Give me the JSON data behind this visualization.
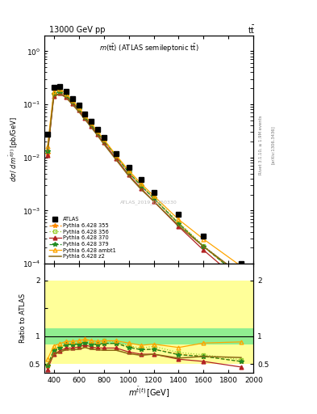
{
  "x_data": [
    350,
    400,
    450,
    500,
    550,
    600,
    650,
    700,
    750,
    800,
    900,
    1000,
    1100,
    1200,
    1400,
    1600,
    1900
  ],
  "atlas_y": [
    0.027,
    0.21,
    0.22,
    0.175,
    0.13,
    0.095,
    0.065,
    0.048,
    0.034,
    0.024,
    0.012,
    0.0065,
    0.0038,
    0.0022,
    0.00085,
    0.00033,
    0.0001
  ],
  "p355_y": [
    0.012,
    0.155,
    0.175,
    0.148,
    0.11,
    0.082,
    0.058,
    0.041,
    0.029,
    0.021,
    0.0105,
    0.0053,
    0.0029,
    0.0017,
    0.00058,
    0.00021,
    5.5e-05
  ],
  "p356_y": [
    0.013,
    0.16,
    0.178,
    0.15,
    0.112,
    0.083,
    0.059,
    0.042,
    0.03,
    0.022,
    0.0108,
    0.0054,
    0.003,
    0.0018,
    0.0006,
    0.00022,
    5.8e-05
  ],
  "p370_y": [
    0.011,
    0.142,
    0.162,
    0.138,
    0.103,
    0.077,
    0.055,
    0.039,
    0.027,
    0.019,
    0.0095,
    0.0047,
    0.0026,
    0.0015,
    0.0005,
    0.00018,
    4.5e-05
  ],
  "p379_y": [
    0.013,
    0.158,
    0.175,
    0.148,
    0.11,
    0.082,
    0.058,
    0.041,
    0.029,
    0.021,
    0.0105,
    0.0052,
    0.0029,
    0.0017,
    0.00057,
    0.00021,
    5.5e-05
  ],
  "pambt1_y": [
    0.016,
    0.175,
    0.192,
    0.16,
    0.118,
    0.087,
    0.062,
    0.044,
    0.031,
    0.022,
    0.011,
    0.0057,
    0.0032,
    0.0019,
    0.00068,
    0.00029,
    9e-05
  ],
  "pz2_y": [
    0.013,
    0.14,
    0.158,
    0.133,
    0.099,
    0.073,
    0.052,
    0.037,
    0.026,
    0.018,
    0.009,
    0.0045,
    0.0025,
    0.0015,
    0.00052,
    0.00021,
    6.2e-05
  ],
  "ratio_355": [
    0.47,
    0.74,
    0.8,
    0.85,
    0.85,
    0.86,
    0.89,
    0.85,
    0.85,
    0.87,
    0.875,
    0.815,
    0.76,
    0.77,
    0.68,
    0.64,
    0.55
  ],
  "ratio_356": [
    0.48,
    0.76,
    0.81,
    0.86,
    0.86,
    0.875,
    0.91,
    0.875,
    0.88,
    0.92,
    0.9,
    0.83,
    0.79,
    0.82,
    0.71,
    0.67,
    0.58
  ],
  "ratio_370": [
    0.41,
    0.68,
    0.74,
    0.79,
    0.79,
    0.81,
    0.85,
    0.81,
    0.79,
    0.79,
    0.79,
    0.72,
    0.68,
    0.68,
    0.59,
    0.55,
    0.45
  ],
  "ratio_379": [
    0.48,
    0.75,
    0.8,
    0.85,
    0.85,
    0.86,
    0.89,
    0.85,
    0.85,
    0.875,
    0.875,
    0.8,
    0.76,
    0.77,
    0.67,
    0.64,
    0.55
  ],
  "ratio_ambt1": [
    0.59,
    0.83,
    0.87,
    0.91,
    0.91,
    0.92,
    0.95,
    0.92,
    0.91,
    0.92,
    0.92,
    0.88,
    0.84,
    0.86,
    0.8,
    0.88,
    0.9
  ],
  "ratio_z2": [
    0.48,
    0.67,
    0.72,
    0.76,
    0.76,
    0.77,
    0.8,
    0.77,
    0.76,
    0.75,
    0.75,
    0.69,
    0.66,
    0.68,
    0.61,
    0.64,
    0.62
  ],
  "color_355": "#FF8C00",
  "color_356": "#9ACD32",
  "color_370": "#B22222",
  "color_379": "#228B22",
  "color_ambt1": "#FFA500",
  "color_z2": "#8B6914",
  "color_atlas": "#000000",
  "band_yellow_color": "#FFFF99",
  "band_green_color": "#90EE90",
  "xlim": [
    325,
    2000
  ],
  "ylim_main_lo": 0.0001,
  "ylim_main_hi": 2.0,
  "ylim_ratio_lo": 0.35,
  "ylim_ratio_hi": 2.3
}
